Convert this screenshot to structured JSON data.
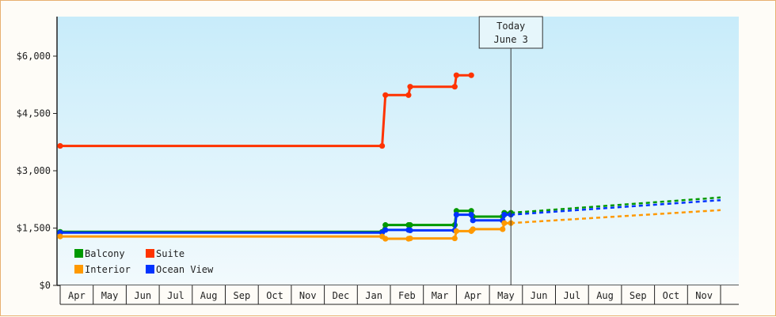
{
  "chart_data": {
    "type": "line",
    "title": "",
    "xlabel": "",
    "ylabel": "",
    "ylim": [
      0,
      6000
    ],
    "y_ticks": [
      {
        "value": 0,
        "label": "$0"
      },
      {
        "value": 1500,
        "label": "$1,500"
      },
      {
        "value": 3000,
        "label": "$3,000"
      },
      {
        "value": 4500,
        "label": "$4,500"
      },
      {
        "value": 6000,
        "label": "$6,000"
      }
    ],
    "x_months": [
      "Apr",
      "May",
      "Jun",
      "Jul",
      "Aug",
      "Sep",
      "Oct",
      "Nov",
      "Dec",
      "Jan",
      "Feb",
      "Mar",
      "Apr",
      "May",
      "Jun",
      "Jul",
      "Aug",
      "Sep",
      "Oct",
      "Nov"
    ],
    "today_month_index": 13.65,
    "today_label_line1": "Today",
    "today_label_line2": "June 3",
    "legend_placement": "bottom-left",
    "series": [
      {
        "name": "Suite",
        "color": "#ff3300",
        "dashed": false,
        "points": [
          [
            0,
            3650
          ],
          [
            9.75,
            3650
          ],
          [
            9.85,
            4980
          ],
          [
            10.55,
            4980
          ],
          [
            10.6,
            5200
          ],
          [
            11.95,
            5200
          ],
          [
            12.0,
            5500
          ],
          [
            12.45,
            5500
          ]
        ]
      },
      {
        "name": "Balcony",
        "color": "#009900",
        "dashed": false,
        "points": [
          [
            0,
            1400
          ],
          [
            9.75,
            1400
          ],
          [
            9.85,
            1580
          ],
          [
            10.55,
            1580
          ],
          [
            10.6,
            1580
          ],
          [
            11.95,
            1580
          ],
          [
            12.0,
            1950
          ],
          [
            12.45,
            1950
          ],
          [
            12.5,
            1800
          ],
          [
            13.4,
            1800
          ],
          [
            13.45,
            1900
          ],
          [
            13.65,
            1900
          ]
        ]
      },
      {
        "name": "Ocean View",
        "color": "#0033ff",
        "dashed": false,
        "points": [
          [
            0,
            1380
          ],
          [
            9.75,
            1380
          ],
          [
            9.85,
            1450
          ],
          [
            10.55,
            1450
          ],
          [
            10.6,
            1440
          ],
          [
            11.95,
            1440
          ],
          [
            12.0,
            1850
          ],
          [
            12.45,
            1850
          ],
          [
            12.5,
            1700
          ],
          [
            13.4,
            1700
          ],
          [
            13.45,
            1850
          ],
          [
            13.65,
            1850
          ]
        ]
      },
      {
        "name": "Interior",
        "color": "#ff9900",
        "dashed": false,
        "points": [
          [
            0,
            1280
          ],
          [
            9.75,
            1280
          ],
          [
            9.85,
            1220
          ],
          [
            10.55,
            1220
          ],
          [
            10.6,
            1230
          ],
          [
            11.95,
            1230
          ],
          [
            12.0,
            1420
          ],
          [
            12.45,
            1420
          ],
          [
            12.5,
            1470
          ],
          [
            13.4,
            1470
          ],
          [
            13.45,
            1630
          ],
          [
            13.65,
            1630
          ]
        ]
      },
      {
        "name": "Balcony-forecast",
        "color": "#009900",
        "dashed": true,
        "points": [
          [
            13.65,
            1900
          ],
          [
            20,
            2300
          ]
        ]
      },
      {
        "name": "Ocean View-forecast",
        "color": "#0033ff",
        "dashed": true,
        "points": [
          [
            13.65,
            1850
          ],
          [
            20,
            2230
          ]
        ]
      },
      {
        "name": "Interior-forecast",
        "color": "#ff9900",
        "dashed": true,
        "points": [
          [
            13.65,
            1630
          ],
          [
            20,
            1970
          ]
        ]
      }
    ],
    "legend": [
      {
        "name": "Balcony",
        "color": "#009900"
      },
      {
        "name": "Suite",
        "color": "#ff3300"
      },
      {
        "name": "Interior",
        "color": "#ff9900"
      },
      {
        "name": "Ocean View",
        "color": "#0033ff"
      }
    ]
  }
}
